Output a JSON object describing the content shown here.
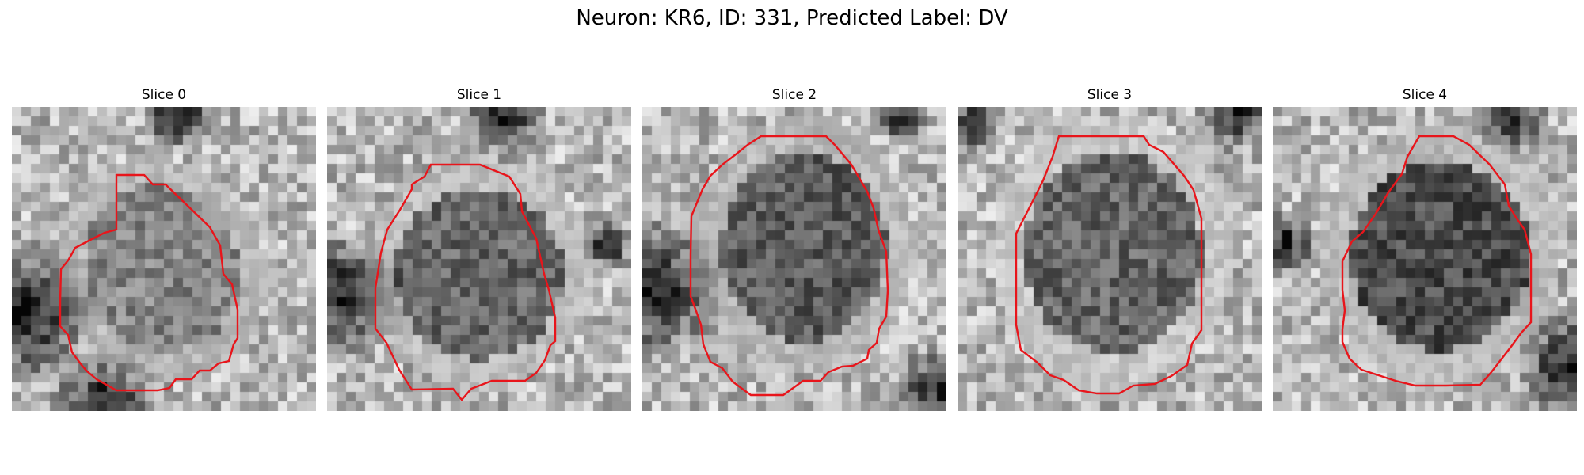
{
  "figure": {
    "title": "Neuron: KR6, ID: 331, Predicted Label: DV"
  },
  "panels": [
    {
      "title": "Slice 0"
    },
    {
      "title": "Slice 1"
    },
    {
      "title": "Slice 2"
    },
    {
      "title": "Slice 3"
    },
    {
      "title": "Slice 4"
    }
  ],
  "colors": {
    "contour": "#e8151b",
    "background": "#ffffff"
  }
}
